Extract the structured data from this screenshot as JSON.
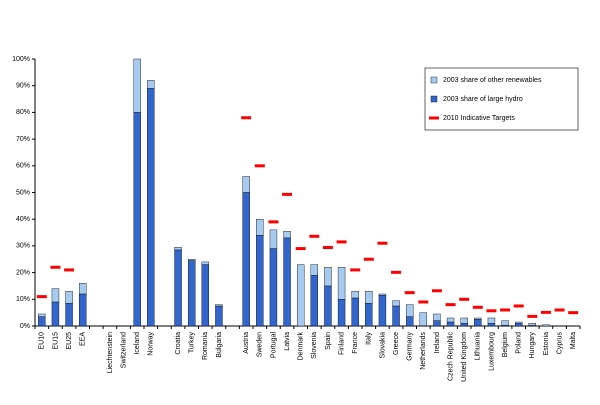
{
  "chart_data": {
    "type": "stacked-bar",
    "categories": [
      "EU10",
      "EU15",
      "EU25",
      "EEA",
      null,
      "Liechtenstein",
      "Switzerland",
      "Iceland",
      "Norway",
      null,
      "Croatia",
      "Turkey",
      "Romania",
      "Bulgaria",
      null,
      "Austria",
      "Sweden",
      "Portugal",
      "Latvia",
      "Denmark",
      "Slovenia",
      "Spain",
      "Finland",
      "France",
      "Italy",
      "Slovakia",
      "Greece",
      "Germany",
      "Netherlands",
      "Ireland",
      "Czech Republic",
      "United Kingdom",
      "Lithuania",
      "Luxembourg",
      "Belgium",
      "Poland",
      "Hungary",
      "Estonia",
      "Cyprus",
      "Malta"
    ],
    "series": [
      {
        "name": "2003 share of other renewables",
        "type": "bar",
        "color": "#a6caf0",
        "values": [
          1,
          5,
          4.5,
          4,
          null,
          null,
          null,
          20,
          3,
          null,
          1,
          0.5,
          1,
          0.5,
          null,
          6,
          6,
          7,
          2.5,
          23,
          4,
          7,
          12,
          2.5,
          4.5,
          0.5,
          2,
          4.5,
          4.9,
          2.5,
          1.5,
          2,
          0.5,
          2,
          1.7,
          0.5,
          0.8,
          0.5,
          0,
          0
        ]
      },
      {
        "name": "2003 share of large hydro",
        "type": "bar",
        "color": "#3366cc",
        "values": [
          3.5,
          9,
          8.5,
          12,
          null,
          null,
          null,
          80,
          89,
          null,
          28.5,
          24.5,
          23,
          7.5,
          null,
          50,
          34,
          29,
          33,
          0,
          19,
          15,
          10,
          10.5,
          8.5,
          11.5,
          7.5,
          3.5,
          0.1,
          2,
          1.5,
          1,
          2.5,
          1,
          0.3,
          1,
          0.2,
          0,
          0,
          0
        ]
      },
      {
        "name": "2010 Indicative Targets",
        "type": "marker",
        "color": "#ff0000",
        "values": [
          11,
          22,
          21,
          null,
          null,
          null,
          null,
          null,
          null,
          null,
          null,
          null,
          null,
          null,
          null,
          78,
          60,
          39,
          49.3,
          29,
          33.6,
          29.4,
          31.5,
          21,
          25,
          31,
          20.1,
          12.5,
          9,
          13.2,
          8,
          10,
          7,
          5.7,
          6,
          7.5,
          3.6,
          5.1,
          6,
          5
        ]
      }
    ],
    "ylim": [
      0,
      100
    ],
    "yticks": [
      {
        "value": 0,
        "label": "0%"
      },
      {
        "value": 10,
        "label": "10%"
      },
      {
        "value": 20,
        "label": "20%"
      },
      {
        "value": 30,
        "label": "30%"
      },
      {
        "value": 40,
        "label": "40%"
      },
      {
        "value": 50,
        "label": "50%"
      },
      {
        "value": 60,
        "label": "60%"
      },
      {
        "value": 70,
        "label": "70%"
      },
      {
        "value": 80,
        "label": "80%"
      },
      {
        "value": 90,
        "label": "90%"
      },
      {
        "value": 100,
        "label": "100%"
      }
    ],
    "grid": false,
    "legend": "top-right"
  }
}
